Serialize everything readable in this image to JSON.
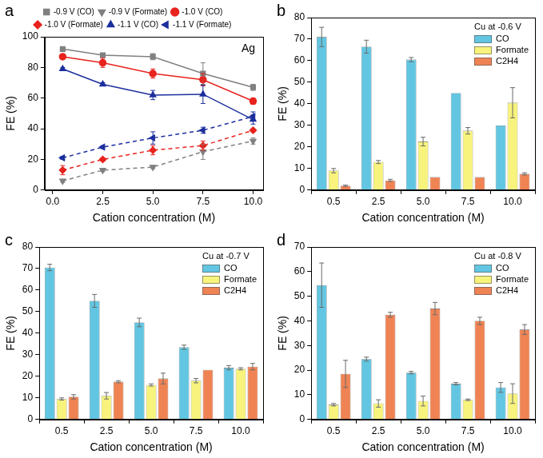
{
  "chart_data": [
    {
      "panel": "a",
      "type": "line",
      "annotation": "Ag",
      "x_label": "Cation concentration (M)",
      "y_label": "FE (%)",
      "x": [
        0.5,
        2.5,
        5,
        7.5,
        10
      ],
      "xlim": [
        -0.4,
        10.5
      ],
      "xticks": [
        {
          "value": 0,
          "label": "0.0"
        },
        2.5,
        {
          "value": 5,
          "label": "5.0"
        },
        7.5,
        {
          "value": 10,
          "label": "10.0"
        }
      ],
      "ylim": [
        0,
        100
      ],
      "yticks": [
        0,
        20,
        40,
        60,
        80,
        100
      ],
      "grid": false,
      "legend": "top",
      "series": [
        {
          "name": "-0.9 V (CO)",
          "color": "#808080",
          "marker": "square",
          "line_style": "solid",
          "values": [
            92,
            88,
            87,
            76,
            67
          ],
          "errors": [
            1,
            1,
            2,
            7,
            2
          ]
        },
        {
          "name": "-0.9 V (Formate)",
          "color": "#808080",
          "marker": "triangle-down",
          "line_style": "dashed",
          "values": [
            6,
            13,
            15,
            25,
            32
          ],
          "errors": [
            1,
            1,
            1,
            5,
            2
          ]
        },
        {
          "name": "-1.0 V (CO)",
          "color": "#e8231e",
          "marker": "circle",
          "line_style": "solid",
          "values": [
            87,
            83,
            76,
            72,
            58
          ],
          "errors": [
            1,
            3,
            3,
            4,
            2
          ]
        },
        {
          "name": "-1.0 V (Formate)",
          "color": "#e8231e",
          "marker": "diamond",
          "line_style": "dashed",
          "values": [
            13,
            20,
            26,
            29,
            39
          ],
          "errors": [
            3,
            1,
            3,
            3,
            1
          ]
        },
        {
          "name": "-1.1 V (CO)",
          "color": "#1c2f9e",
          "marker": "triangle",
          "line_style": "solid",
          "values": [
            79,
            69,
            62,
            62.5,
            46
          ],
          "errors": [
            1,
            1,
            3,
            6,
            3
          ]
        },
        {
          "name": "-1.1 V (Formate)",
          "color": "#1c2f9e",
          "marker": "triangle-left",
          "line_style": "dashed",
          "values": [
            21,
            28,
            34,
            39,
            48
          ],
          "errors": [
            1,
            1,
            4,
            2,
            3
          ]
        }
      ]
    },
    {
      "panel": "b",
      "type": "bar",
      "annotation": "Cu at -0.6 V",
      "x_label": "Cation concentration (M)",
      "y_label": "FE (%)",
      "categories": [
        "0.5",
        "2.5",
        "5.0",
        "7.5",
        "10.0"
      ],
      "ylim": [
        0,
        80
      ],
      "yticks": [
        0,
        10,
        20,
        30,
        40,
        50,
        60,
        70,
        80
      ],
      "grid": false,
      "legend": "upper right",
      "series": [
        {
          "name": "CO",
          "color": "#62c6e2",
          "values": [
            71,
            66.5,
            60.5,
            45,
            30
          ],
          "errors": [
            4.5,
            3,
            1,
            0,
            0
          ]
        },
        {
          "name": "Formate",
          "color": "#f7f37c",
          "values": [
            9,
            13,
            22.5,
            27.5,
            40.5
          ],
          "errors": [
            1,
            0.7,
            2,
            1.5,
            7
          ]
        },
        {
          "name": "C2H4",
          "color": "#ef8354",
          "values": [
            2,
            4.5,
            6,
            6,
            7.5
          ],
          "errors": [
            0.3,
            0.5,
            0,
            0,
            0.5
          ]
        }
      ]
    },
    {
      "panel": "c",
      "type": "bar",
      "annotation": "Cu at -0.7 V",
      "x_label": "Cation concentration (M)",
      "y_label": "FE (%)",
      "categories": [
        "0.5",
        "2.5",
        "5.0",
        "7.5",
        "10.0"
      ],
      "ylim": [
        0,
        80
      ],
      "yticks": [
        0,
        10,
        20,
        30,
        40,
        50,
        60,
        70,
        80
      ],
      "grid": false,
      "legend": "upper right",
      "series": [
        {
          "name": "CO",
          "color": "#62c6e2",
          "values": [
            70.5,
            55,
            45,
            33.5,
            24
          ],
          "errors": [
            1.5,
            3,
            2,
            1,
            1
          ]
        },
        {
          "name": "Formate",
          "color": "#f7f37c",
          "values": [
            9.5,
            11,
            16,
            18,
            23.5
          ],
          "errors": [
            0.5,
            1.5,
            0.5,
            1,
            0.5
          ]
        },
        {
          "name": "C2H4",
          "color": "#ef8354",
          "values": [
            10.5,
            17.5,
            19,
            23,
            24.5
          ],
          "errors": [
            1,
            0.5,
            2.5,
            0,
            1.5
          ]
        }
      ]
    },
    {
      "panel": "d",
      "type": "bar",
      "annotation": "Cu at -0.8 V",
      "x_label": "Cation concentration (M)",
      "y_label": "FE (%)",
      "categories": [
        "0.5",
        "2.5",
        "5.0",
        "7.5",
        "10.0"
      ],
      "ylim": [
        0,
        70
      ],
      "yticks": [
        0,
        10,
        20,
        30,
        40,
        50,
        60,
        70
      ],
      "grid": false,
      "legend": "upper right",
      "series": [
        {
          "name": "CO",
          "color": "#62c6e2",
          "values": [
            54.5,
            24.5,
            19,
            14.5,
            13
          ],
          "errors": [
            9,
            0.8,
            0.5,
            0.5,
            2
          ]
        },
        {
          "name": "Formate",
          "color": "#f7f37c",
          "values": [
            6,
            6.5,
            7.5,
            8,
            10.5
          ],
          "errors": [
            0.5,
            1.5,
            2,
            0.3,
            4
          ]
        },
        {
          "name": "C2H4",
          "color": "#ef8354",
          "values": [
            18.5,
            42.5,
            45,
            40,
            36.5
          ],
          "errors": [
            5.5,
            1,
            2.5,
            1.5,
            2
          ]
        }
      ]
    }
  ]
}
